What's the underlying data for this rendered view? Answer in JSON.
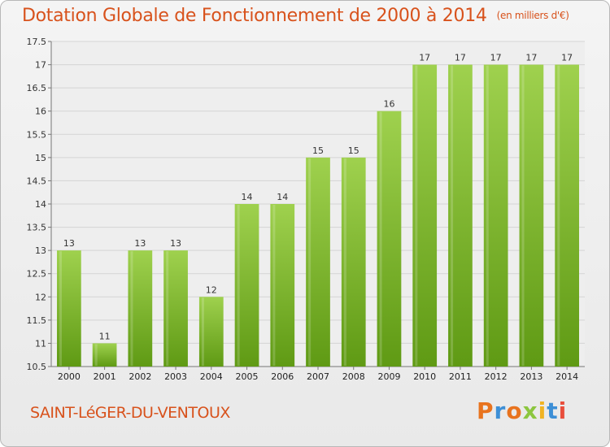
{
  "header": {
    "title": "Dotation Globale de Fonctionnement de 2000 à 2014",
    "unit": "(en milliers d'€)"
  },
  "footer": {
    "town": "SAINT-LéGER-DU-VENTOUX",
    "logo": "Proxiti"
  },
  "colors": {
    "title": "#d8521c",
    "bar_light": "#9fd14e",
    "bar_dark": "#5f9a14",
    "logo_letters": [
      "#e8731e",
      "#3d8fd6",
      "#e8731e",
      "#8cc63f",
      "#f0b323",
      "#3d8fd6",
      "#e84e3c"
    ]
  },
  "chart_data": {
    "type": "bar",
    "categories": [
      "2000",
      "2001",
      "2002",
      "2003",
      "2004",
      "2005",
      "2006",
      "2007",
      "2008",
      "2009",
      "2010",
      "2011",
      "2012",
      "2013",
      "2014"
    ],
    "values": [
      13,
      11,
      13,
      13,
      12,
      14,
      14,
      15,
      15,
      16,
      17,
      17,
      17,
      17,
      17
    ],
    "data_labels": [
      "13",
      "11",
      "13",
      "13",
      "12",
      "14",
      "14",
      "15",
      "15",
      "16",
      "17",
      "17",
      "17",
      "17",
      "17"
    ],
    "yticks": [
      10.5,
      11,
      11.5,
      12,
      12.5,
      13,
      13.5,
      14,
      14.5,
      15,
      15.5,
      16,
      16.5,
      17,
      17.5
    ],
    "ytick_labels": [
      "10.5",
      "11",
      "11.5",
      "12",
      "12.5",
      "13",
      "13.5",
      "14",
      "14.5",
      "15",
      "15.5",
      "16",
      "16.5",
      "17",
      "17.5"
    ],
    "ylim": [
      10.5,
      17.5
    ],
    "grid": true,
    "title": "Dotation Globale de Fonctionnement de 2000 à 2014",
    "xlabel": "",
    "ylabel": ""
  }
}
